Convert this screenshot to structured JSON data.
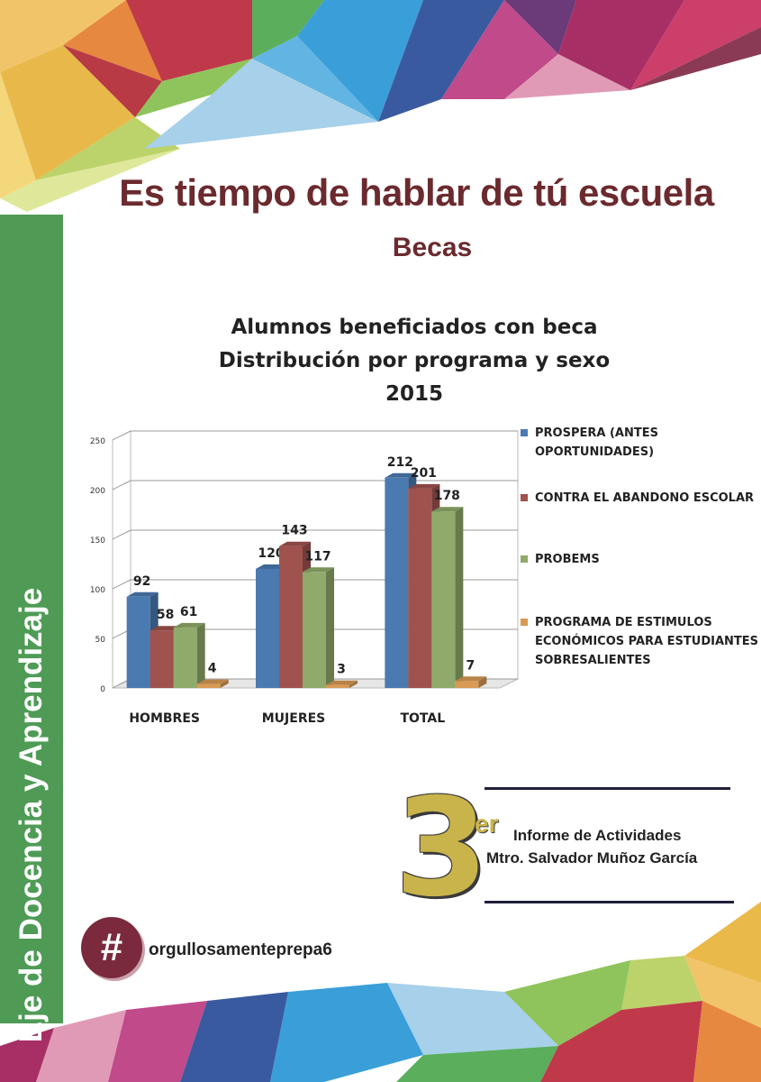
{
  "page": {
    "title": "Es tiempo de hablar de tú escuela",
    "subtitle": "Becas",
    "sidebar_text": "Eje de Docencia y Aprendizaje",
    "report_big": "3",
    "report_suffix": "er",
    "report_line1": "Informe de Actividades",
    "report_line2": "Mtro. Salvador Muñoz García",
    "hash_symbol": "#",
    "hashtag": "orgullosamenteprepa6"
  },
  "chart_data": {
    "type": "bar",
    "title": [
      "Alumnos beneficiados con beca",
      "Distribución por programa y sexo",
      "2015"
    ],
    "categories": [
      "HOMBRES",
      "MUJERES",
      "TOTAL"
    ],
    "series": [
      {
        "name": "PROSPERA (ANTES OPORTUNIDADES)",
        "values": [
          92,
          120,
          212
        ],
        "color": "#4a7ab0"
      },
      {
        "name": "CONTRA EL ABANDONO ESCOLAR",
        "values": [
          58,
          143,
          201
        ],
        "color": "#a0524f"
      },
      {
        "name": "PROBEMS",
        "values": [
          61,
          117,
          178
        ],
        "color": "#8faa6a"
      },
      {
        "name": "PROGRAMA DE ESTIMULOS ECONÓMICOS PARA ESTUDIANTES SOBRESALIENTES",
        "values": [
          4,
          3,
          7
        ],
        "color": "#d89a55"
      }
    ],
    "ylim": [
      0,
      250
    ],
    "yticks": [
      0,
      50,
      100,
      150,
      200,
      250
    ],
    "grid": true,
    "legend": "right"
  }
}
